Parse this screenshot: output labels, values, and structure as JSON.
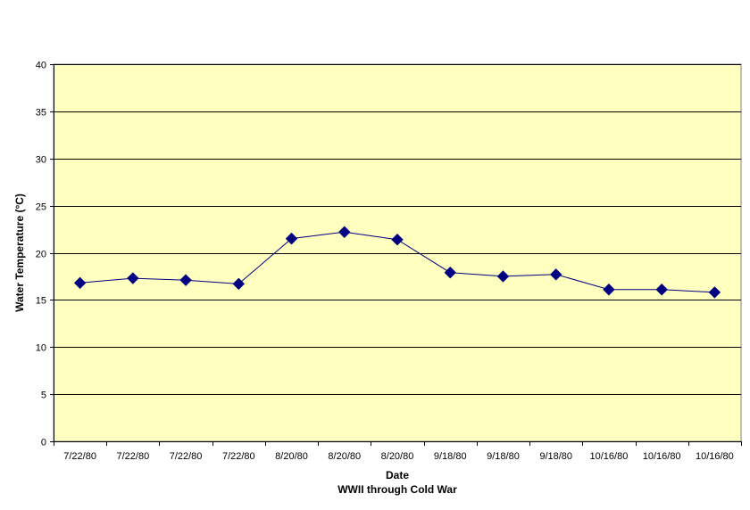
{
  "chart_data": {
    "type": "line",
    "title": "",
    "xlabel": "Date",
    "xlabel_sub": "WWII through Cold War",
    "ylabel": "Water Temperature (°C)",
    "ylim": [
      0,
      40
    ],
    "yticks": [
      0,
      5,
      10,
      15,
      20,
      25,
      30,
      35,
      40
    ],
    "grid": true,
    "legend": "none",
    "categories": [
      "7/22/80",
      "7/22/80",
      "7/22/80",
      "7/22/80",
      "8/20/80",
      "8/20/80",
      "8/20/80",
      "9/18/80",
      "9/18/80",
      "9/18/80",
      "10/16/80",
      "10/16/80",
      "10/16/80"
    ],
    "series": [
      {
        "values": [
          16.8,
          17.3,
          17.1,
          16.7,
          21.5,
          22.2,
          21.4,
          17.9,
          17.5,
          17.7,
          16.1,
          16.1,
          15.8
        ]
      }
    ],
    "colors": {
      "plot_background": "#ffffc0",
      "line": "#000080",
      "marker": "#000080",
      "grid": "#000000",
      "border": "#808080"
    }
  }
}
